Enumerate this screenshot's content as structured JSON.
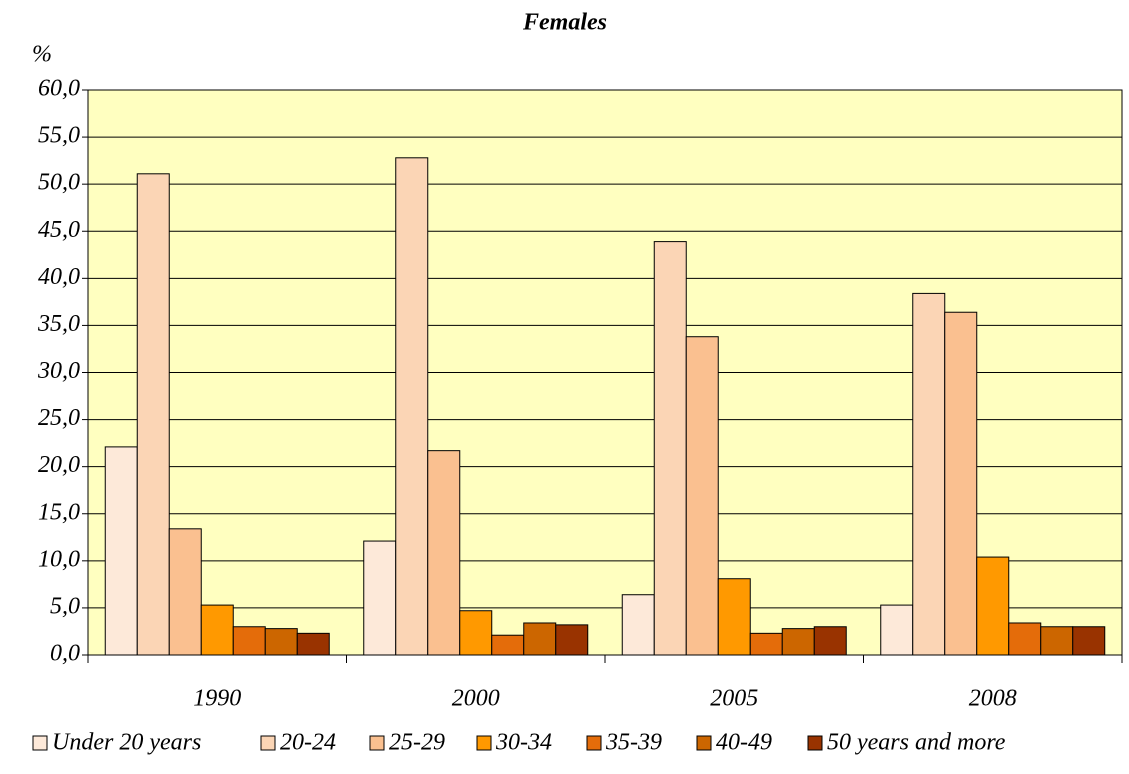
{
  "chart_data": {
    "type": "bar",
    "title": "Females",
    "y_label": "%",
    "categories": [
      "1990",
      "2000",
      "2005",
      "2008"
    ],
    "series": [
      {
        "name": "Under 20 years",
        "color": "#fde9d9",
        "values": [
          22.1,
          12.1,
          6.4,
          5.3
        ]
      },
      {
        "name": "20-24",
        "color": "#fbd5b5",
        "values": [
          51.1,
          52.8,
          43.9,
          38.4
        ]
      },
      {
        "name": "25-29",
        "color": "#fac090",
        "values": [
          13.4,
          21.7,
          33.8,
          36.4
        ]
      },
      {
        "name": "30-34",
        "color": "#ff9900",
        "values": [
          5.3,
          4.7,
          8.1,
          10.4
        ]
      },
      {
        "name": "35-39",
        "color": "#e46c0a",
        "values": [
          3.0,
          2.1,
          2.3,
          3.4
        ]
      },
      {
        "name": "40-49",
        "color": "#cc6600",
        "values": [
          2.8,
          3.4,
          2.8,
          3.0
        ]
      },
      {
        "name": "50 years and more",
        "color": "#993300",
        "values": [
          2.3,
          3.2,
          3.0,
          3.0
        ]
      }
    ],
    "ylim": [
      0,
      60
    ],
    "yticks": [
      {
        "value": 0,
        "label": "0,0"
      },
      {
        "value": 5,
        "label": "5,0"
      },
      {
        "value": 10,
        "label": "10,0"
      },
      {
        "value": 15,
        "label": "15,0"
      },
      {
        "value": 20,
        "label": "20,0"
      },
      {
        "value": 25,
        "label": "25,0"
      },
      {
        "value": 30,
        "label": "30,0"
      },
      {
        "value": 35,
        "label": "35,0"
      },
      {
        "value": 40,
        "label": "40,0"
      },
      {
        "value": 45,
        "label": "45,0"
      },
      {
        "value": 50,
        "label": "50,0"
      },
      {
        "value": 55,
        "label": "55,0"
      },
      {
        "value": 60,
        "label": "60,0"
      }
    ],
    "grid": true,
    "plot_background": "#ffffc0",
    "legend": "bottom"
  }
}
